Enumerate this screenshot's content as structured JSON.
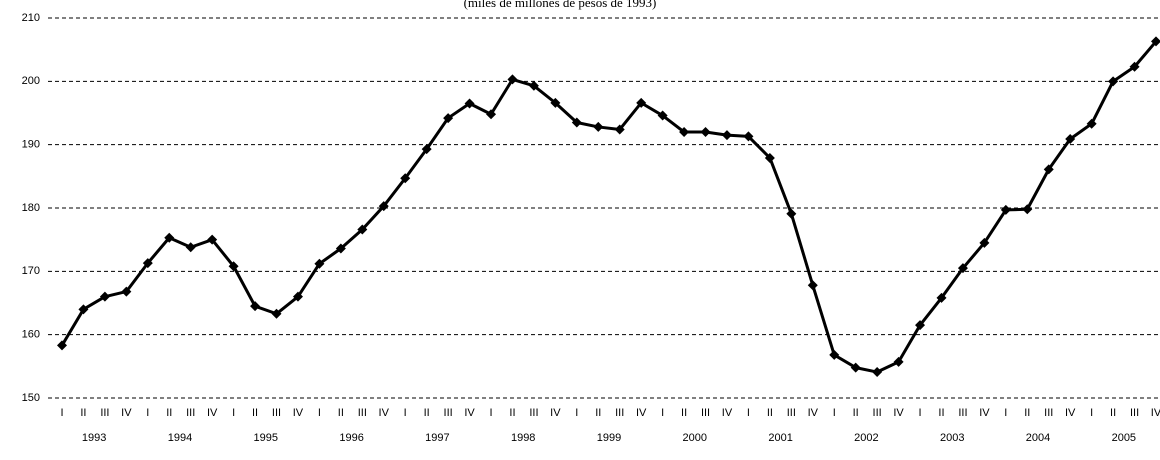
{
  "chart_data": {
    "type": "line",
    "subtitle": "(miles de millones de pesos de 1993)",
    "categories": [
      "I",
      "II",
      "III",
      "IV",
      "I",
      "II",
      "III",
      "IV",
      "I",
      "II",
      "III",
      "IV",
      "I",
      "II",
      "III",
      "IV",
      "I",
      "II",
      "III",
      "IV",
      "I",
      "II",
      "III",
      "IV",
      "I",
      "II",
      "III",
      "IV",
      "I",
      "II",
      "III",
      "IV",
      "I",
      "II",
      "III",
      "IV",
      "I",
      "II",
      "III",
      "IV",
      "I",
      "II",
      "III",
      "IV",
      "I",
      "II",
      "III",
      "IV",
      "I",
      "II",
      "III",
      "IV"
    ],
    "years": [
      "1993",
      "1994",
      "1995",
      "1996",
      "1997",
      "1998",
      "1999",
      "2000",
      "2001",
      "2002",
      "2003",
      "2004",
      "2005"
    ],
    "values": [
      158.3,
      164,
      166,
      166.8,
      171.3,
      175.3,
      173.8,
      175,
      170.8,
      164.5,
      163.3,
      166,
      171.2,
      173.6,
      176.6,
      180.3,
      184.7,
      189.3,
      194.2,
      196.5,
      194.8,
      200.3,
      199.3,
      196.6,
      193.5,
      192.8,
      192.4,
      196.6,
      194.6,
      192,
      192,
      191.5,
      191.3,
      187.9,
      179.1,
      167.8,
      156.8,
      154.8,
      154.1,
      155.7,
      161.5,
      165.8,
      170.5,
      174.5,
      179.7,
      179.8,
      186.1,
      190.9,
      193.3,
      200,
      202.3,
      206.3
    ],
    "color": "#000000",
    "ylim": [
      150,
      210
    ],
    "yticks": [
      150,
      160,
      170,
      180,
      190,
      200,
      210
    ],
    "grid": true
  }
}
